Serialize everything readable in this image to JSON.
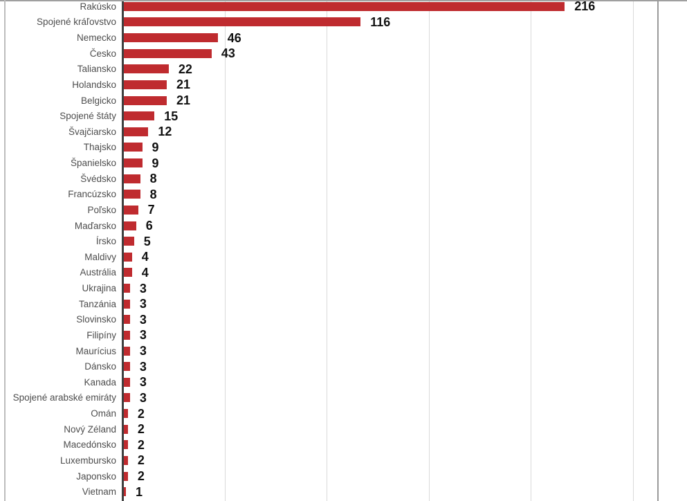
{
  "chart_data": {
    "type": "bar",
    "orientation": "horizontal",
    "title": "",
    "xlabel": "",
    "ylabel": "",
    "categories": [
      "Rakúsko",
      "Spojené kráľovstvo",
      "Nemecko",
      "Česko",
      "Taliansko",
      "Holandsko",
      "Belgicko",
      "Spojené štáty",
      "Švajčiarsko",
      "Thajsko",
      "Španielsko",
      "Švédsko",
      "Francúzsko",
      "Poľsko",
      "Maďarsko",
      "Írsko",
      "Maldivy",
      "Austrália",
      "Ukrajina",
      "Tanzánia",
      "Slovinsko",
      "Filipíny",
      "Maurícius",
      "Dánsko",
      "Kanada",
      "Spojené arabské emiráty",
      "Omán",
      "Nový Zéland",
      "Macedónsko",
      "Luxembursko",
      "Japonsko",
      "Vietnam"
    ],
    "values": [
      216,
      116,
      46,
      43,
      22,
      21,
      21,
      15,
      12,
      9,
      9,
      8,
      8,
      7,
      6,
      5,
      4,
      4,
      3,
      3,
      3,
      3,
      3,
      3,
      3,
      3,
      2,
      2,
      2,
      2,
      2,
      1
    ],
    "xlim": [
      0,
      250
    ],
    "x_gridline_interval": 50,
    "grid": "vertical-only",
    "legend": "none",
    "data_labels": "outside-end",
    "bar_color": "#bf2b2f",
    "category_label_color": "#4d4d4d",
    "value_label_color": "#111111"
  }
}
